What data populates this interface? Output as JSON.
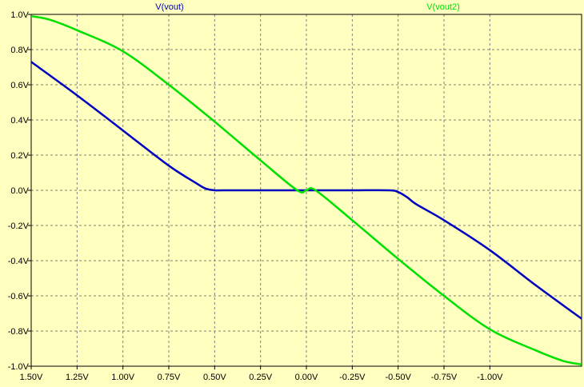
{
  "chart_data": {
    "type": "line",
    "title": "",
    "xlabel": "",
    "ylabel": "",
    "x_axis_reversed": true,
    "xlim": [
      1.5,
      -1.5
    ],
    "ylim": [
      -1.0,
      1.0
    ],
    "grid": true,
    "background_color": "#ffffc0",
    "x_ticks": [
      1.5,
      1.25,
      1.0,
      0.75,
      0.5,
      0.25,
      0.0,
      -0.25,
      -0.5,
      -0.75,
      -1.0
    ],
    "x_tick_labels": [
      "1.50V",
      "1.25V",
      "1.00V",
      "0.75V",
      "0.50V",
      "0.25V",
      "0.00V",
      "-0.25V",
      "-0.50V",
      "-0.75V",
      "-1.00V"
    ],
    "y_ticks": [
      1.0,
      0.8,
      0.6,
      0.4,
      0.2,
      0.0,
      -0.2,
      -0.4,
      -0.6,
      -0.8,
      -1.0
    ],
    "y_tick_labels": [
      "1.0V",
      "0.8V",
      "0.6V",
      "0.4V",
      "0.2V",
      "0.0V",
      "-0.2V",
      "-0.4V",
      "-0.6V",
      "-0.8V",
      "-1.0V"
    ],
    "series": [
      {
        "name": "V(vout)",
        "color": "#0000c0",
        "x": [
          1.5,
          1.25,
          1.0,
          0.75,
          0.6,
          0.55,
          0.5,
          0.45,
          0.25,
          0.0,
          -0.25,
          -0.45,
          -0.5,
          -0.55,
          -0.6,
          -0.75,
          -1.0,
          -1.25,
          -1.5
        ],
        "y": [
          0.73,
          0.54,
          0.34,
          0.14,
          0.04,
          0.01,
          0.0,
          0.0,
          0.0,
          0.0,
          0.0,
          0.0,
          -0.01,
          -0.04,
          -0.08,
          -0.17,
          -0.34,
          -0.54,
          -0.73
        ]
      },
      {
        "name": "V(vout2)",
        "color": "#00e000",
        "x": [
          1.5,
          1.4,
          1.25,
          1.0,
          0.75,
          0.5,
          0.25,
          0.05,
          0.0,
          -0.05,
          -0.25,
          -0.5,
          -0.75,
          -1.0,
          -1.25,
          -1.4,
          -1.5
        ],
        "y": [
          0.99,
          0.97,
          0.91,
          0.79,
          0.6,
          0.39,
          0.17,
          0.0,
          0.0,
          0.0,
          -0.17,
          -0.39,
          -0.6,
          -0.79,
          -0.91,
          -0.97,
          -0.99
        ]
      }
    ]
  }
}
